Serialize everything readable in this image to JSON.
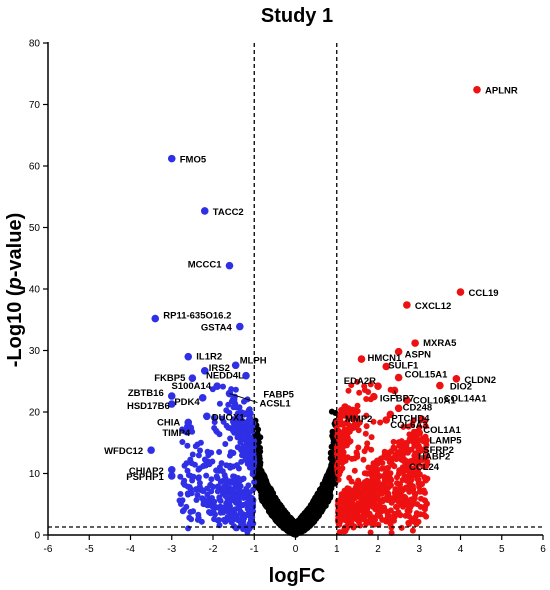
{
  "chart_data": {
    "type": "scatter",
    "title": "Study 1",
    "xlabel": "logFC",
    "ylabel_parts": [
      "-Log10 (",
      "p",
      "-value)"
    ],
    "xlim": [
      -6,
      6
    ],
    "ylim": [
      0,
      80
    ],
    "x_ticks": [
      -6,
      -5,
      -4,
      -3,
      -2,
      -1,
      0,
      1,
      2,
      3,
      4,
      5,
      6
    ],
    "y_ticks": [
      0,
      10,
      20,
      30,
      40,
      50,
      60,
      70,
      80
    ],
    "thresholds": {
      "logfc": [
        -1,
        1
      ],
      "neg_log10_p": 1.3
    },
    "colors": {
      "down": "#2f2fe6",
      "up": "#ee1111",
      "ns": "#000000"
    },
    "labeled_down": [
      {
        "gene": "FMO5",
        "x": -3.0,
        "y": 61.2
      },
      {
        "gene": "TACC2",
        "x": -2.2,
        "y": 52.7
      },
      {
        "gene": "MCCC1",
        "x": -1.6,
        "y": 43.8
      },
      {
        "gene": "RP11-635O16.2",
        "x": -3.4,
        "y": 35.2
      },
      {
        "gene": "GSTA4",
        "x": -1.35,
        "y": 33.9
      },
      {
        "gene": "IL1R2",
        "x": -2.6,
        "y": 29.0
      },
      {
        "gene": "MLPH",
        "x": -1.45,
        "y": 27.6
      },
      {
        "gene": "IRS2",
        "x": -2.2,
        "y": 26.7
      },
      {
        "gene": "NEDD4L",
        "x": -1.2,
        "y": 25.9
      },
      {
        "gene": "FKBP5",
        "x": -2.5,
        "y": 25.5
      },
      {
        "gene": "S100A14",
        "x": -1.9,
        "y": 24.2
      },
      {
        "gene": "ZBTB16",
        "x": -3.0,
        "y": 22.6
      },
      {
        "gene": "ACSL1",
        "x": -1.6,
        "y": 23.0
      },
      {
        "gene": "HSD17B6",
        "x": -3.0,
        "y": 21.3
      },
      {
        "gene": "PDK4",
        "x": -2.25,
        "y": 22.3
      },
      {
        "gene": "FABP5",
        "x": -1.5,
        "y": 22.0
      },
      {
        "gene": "DUOX1",
        "x": -2.15,
        "y": 19.3
      },
      {
        "gene": "CHIA",
        "x": -2.6,
        "y": 18.3
      },
      {
        "gene": "TIMP4",
        "x": -2.55,
        "y": 17.4
      },
      {
        "gene": "WFDC12",
        "x": -3.5,
        "y": 13.8
      },
      {
        "gene": "CHIAP2",
        "x": -3.0,
        "y": 10.6
      },
      {
        "gene": "PSPHP1",
        "x": -3.0,
        "y": 9.6
      }
    ],
    "labeled_up": [
      {
        "gene": "APLNR",
        "x": 4.4,
        "y": 72.4
      },
      {
        "gene": "CCL19",
        "x": 4.0,
        "y": 39.5
      },
      {
        "gene": "CXCL12",
        "x": 2.7,
        "y": 37.4
      },
      {
        "gene": "MXRA5",
        "x": 2.9,
        "y": 31.2
      },
      {
        "gene": "ASPN",
        "x": 2.5,
        "y": 29.8
      },
      {
        "gene": "HMCN1",
        "x": 1.6,
        "y": 28.6
      },
      {
        "gene": "SULF1",
        "x": 2.2,
        "y": 27.4
      },
      {
        "gene": "COL15A1",
        "x": 2.5,
        "y": 25.6
      },
      {
        "gene": "CLDN2",
        "x": 3.9,
        "y": 25.4
      },
      {
        "gene": "DIO2",
        "x": 3.5,
        "y": 24.3
      },
      {
        "gene": "EDA2R",
        "x": 2.0,
        "y": 24.2
      },
      {
        "gene": "COL14A1",
        "x": 2.4,
        "y": 23.5
      },
      {
        "gene": "IGFBP7",
        "x": 1.9,
        "y": 22.5
      },
      {
        "gene": "COL10A1",
        "x": 2.7,
        "y": 21.9
      },
      {
        "gene": "MMP2",
        "x": 1.2,
        "y": 20.8
      },
      {
        "gene": "CD248",
        "x": 2.5,
        "y": 20.6
      },
      {
        "gene": "PTCHD4",
        "x": 2.3,
        "y": 19.6
      },
      {
        "gene": "COL6A3",
        "x": 2.2,
        "y": 18.7
      },
      {
        "gene": "COL1A1",
        "x": 3.0,
        "y": 16.6
      },
      {
        "gene": "LAMP5",
        "x": 3.1,
        "y": 15.4
      },
      {
        "gene": "SFRP2",
        "x": 3.0,
        "y": 14.0
      },
      {
        "gene": "HABP2",
        "x": 2.9,
        "y": 12.9
      },
      {
        "gene": "CCL24",
        "x": 2.8,
        "y": 11.9
      }
    ]
  }
}
